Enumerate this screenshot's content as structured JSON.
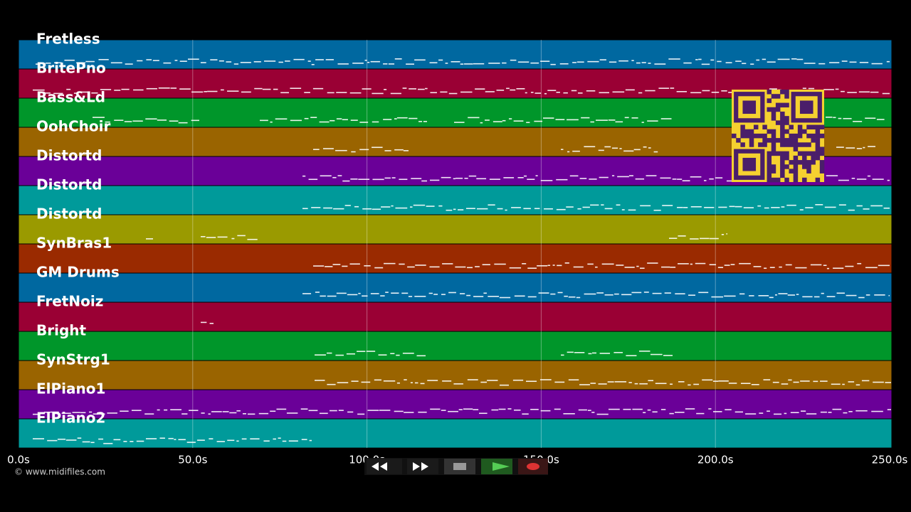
{
  "tracks": [
    {
      "name": "Fretless",
      "color": "#0068a0"
    },
    {
      "name": "BritePno",
      "color": "#9a0034"
    },
    {
      "name": "Bass&Ld",
      "color": "#00962a"
    },
    {
      "name": "OohChoir",
      "color": "#9a6400"
    },
    {
      "name": "Distortd",
      "color": "#6a0098"
    },
    {
      "name": "Distortd",
      "color": "#009a9a"
    },
    {
      "name": "Distortd",
      "color": "#9a9a00"
    },
    {
      "name": "SynBras1",
      "color": "#9a2a00"
    },
    {
      "name": "GM Drums",
      "color": "#0068a0"
    },
    {
      "name": "FretNoiz",
      "color": "#9a0034"
    },
    {
      "name": "Bright",
      "color": "#00962a"
    },
    {
      "name": "SynStrg1",
      "color": "#9a6400"
    },
    {
      "name": "ElPiano1",
      "color": "#6a0098"
    },
    {
      "name": "ElPiano2",
      "color": "#009a9a"
    }
  ],
  "timeline": {
    "ticks": [
      "0.0s",
      "50.0s",
      "100.0s",
      "150.0s",
      "200.0s",
      "250.0s"
    ]
  },
  "footer": {
    "copyright": "© www.midifiles.com"
  }
}
